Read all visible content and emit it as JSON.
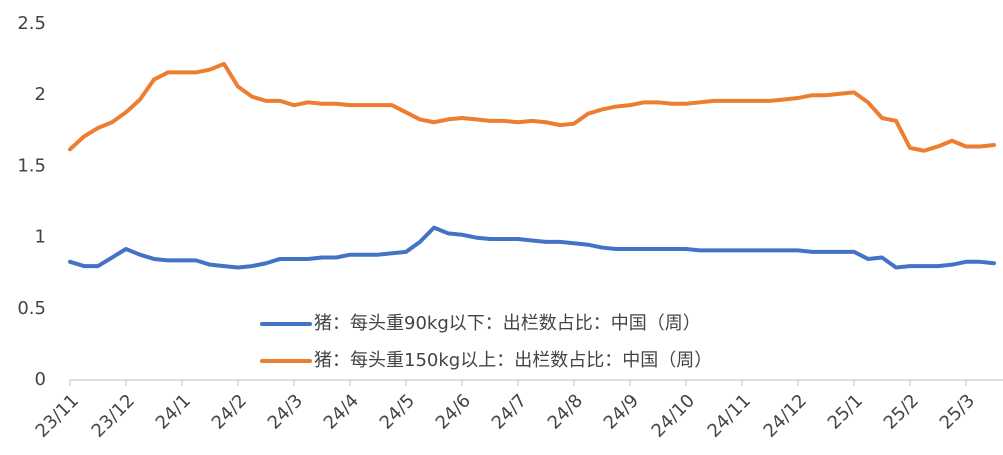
{
  "chart_data": {
    "type": "line",
    "categories": [
      "23/11",
      null,
      null,
      null,
      "23/12",
      null,
      null,
      null,
      "24/1",
      null,
      null,
      null,
      "24/2",
      null,
      null,
      null,
      "24/3",
      null,
      null,
      null,
      "24/4",
      null,
      null,
      null,
      "24/5",
      null,
      null,
      null,
      "24/6",
      null,
      null,
      null,
      "24/7",
      null,
      null,
      null,
      "24/8",
      null,
      null,
      null,
      "24/9",
      null,
      null,
      null,
      "24/10",
      null,
      null,
      null,
      "24/11",
      null,
      null,
      null,
      "24/12",
      null,
      null,
      null,
      "25/1",
      null,
      null,
      null,
      "25/2",
      null,
      null,
      null,
      "25/3",
      null,
      null
    ],
    "series": [
      {
        "name": "猪：每头重90kg以下：出栏数占比：中国（周）",
        "color": "#4472c4",
        "values": [
          0.83,
          0.8,
          0.8,
          0.86,
          0.92,
          0.88,
          0.85,
          0.84,
          0.84,
          0.84,
          0.81,
          0.8,
          0.79,
          0.8,
          0.82,
          0.85,
          0.85,
          0.85,
          0.86,
          0.86,
          0.88,
          0.88,
          0.88,
          0.89,
          0.9,
          0.97,
          1.07,
          1.03,
          1.02,
          1.0,
          0.99,
          0.99,
          0.99,
          0.98,
          0.97,
          0.97,
          0.96,
          0.95,
          0.93,
          0.92,
          0.92,
          0.92,
          0.92,
          0.92,
          0.92,
          0.91,
          0.91,
          0.91,
          0.91,
          0.91,
          0.91,
          0.91,
          0.91,
          0.9,
          0.9,
          0.9,
          0.9,
          0.85,
          0.86,
          0.79,
          0.8,
          0.8,
          0.8,
          0.81,
          0.83,
          0.83,
          0.82
        ]
      },
      {
        "name": "猪：每头重150kg以上：出栏数占比：中国（周）",
        "color": "#ed7d31",
        "values": [
          1.62,
          1.71,
          1.77,
          1.81,
          1.88,
          1.97,
          2.11,
          2.16,
          2.16,
          2.16,
          2.18,
          2.22,
          2.06,
          1.99,
          1.96,
          1.96,
          1.93,
          1.95,
          1.94,
          1.94,
          1.93,
          1.93,
          1.93,
          1.93,
          1.88,
          1.83,
          1.81,
          1.83,
          1.84,
          1.83,
          1.82,
          1.82,
          1.81,
          1.82,
          1.81,
          1.79,
          1.8,
          1.87,
          1.9,
          1.92,
          1.93,
          1.95,
          1.95,
          1.94,
          1.94,
          1.95,
          1.96,
          1.96,
          1.96,
          1.96,
          1.96,
          1.97,
          1.98,
          2.0,
          2.0,
          2.01,
          2.02,
          1.95,
          1.84,
          1.82,
          1.63,
          1.61,
          1.64,
          1.68,
          1.64,
          1.64,
          1.65
        ]
      }
    ],
    "ylim": [
      0,
      2.5
    ],
    "yticks": [
      0,
      0.5,
      1,
      1.5,
      2,
      2.5
    ],
    "grid": false
  }
}
